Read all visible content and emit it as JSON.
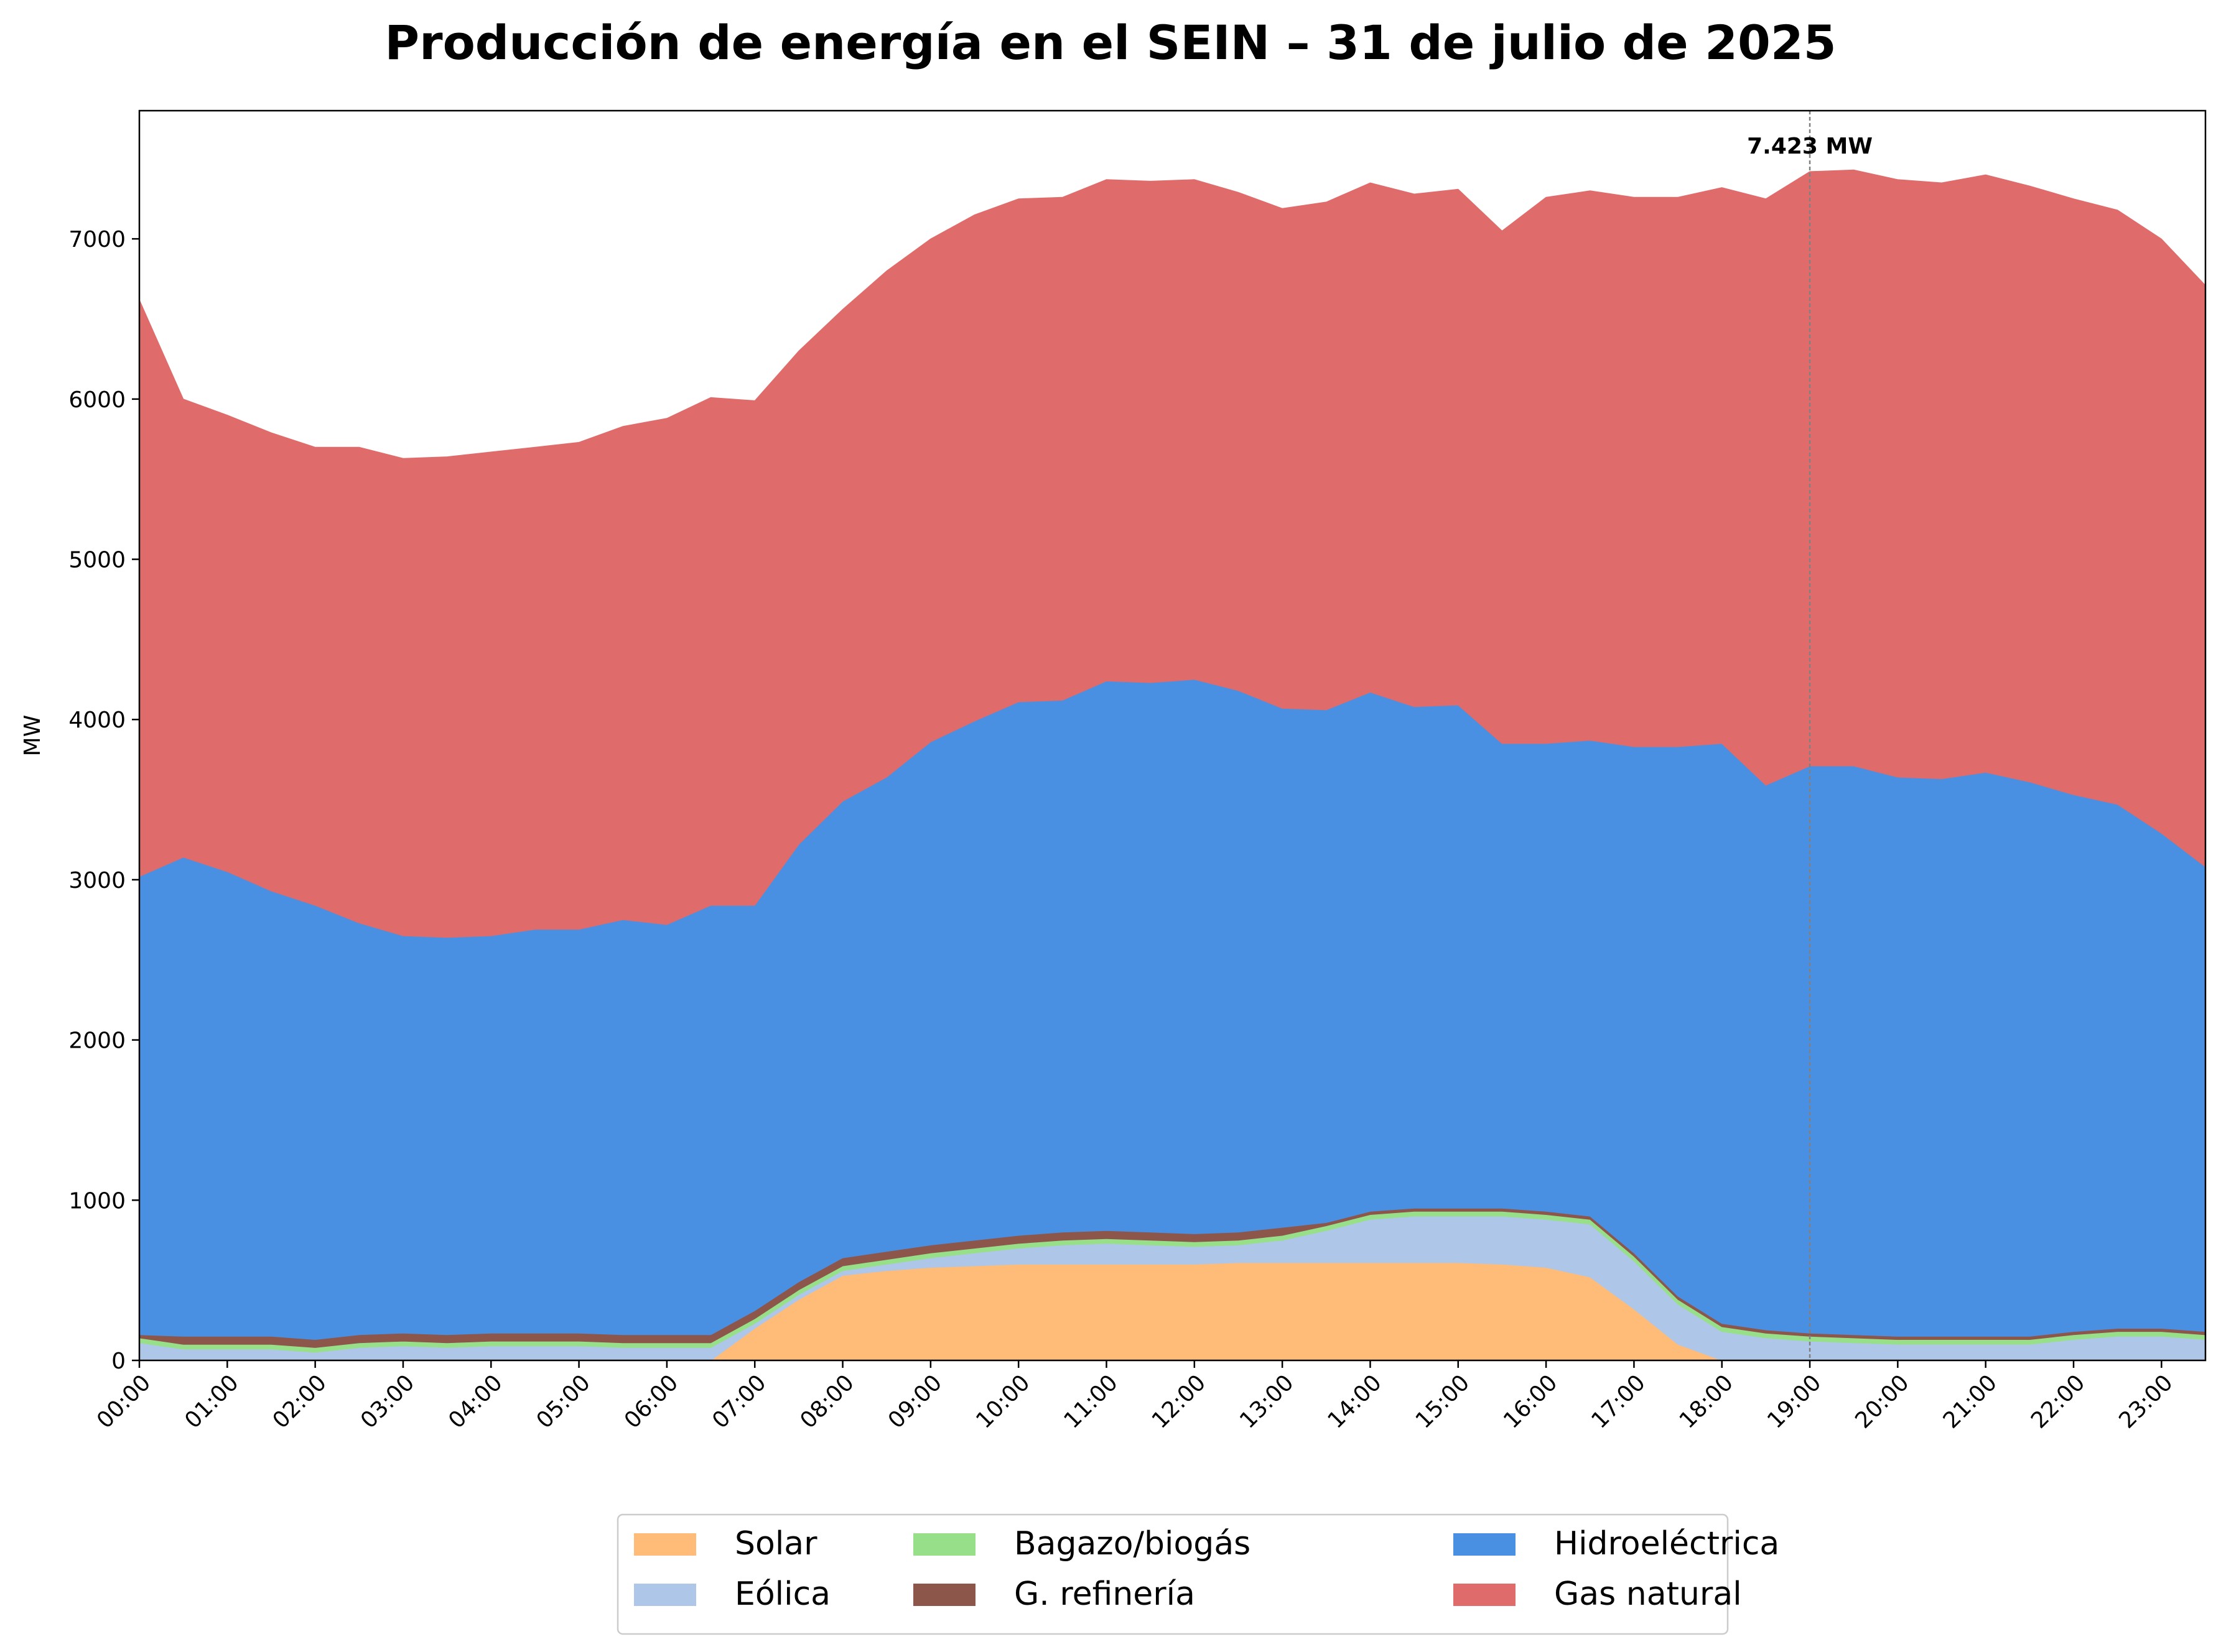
{
  "chart_data": {
    "type": "area",
    "stacked": true,
    "title": "Producción de energía en el SEIN – 31 de julio de 2025",
    "xlabel": "",
    "ylabel": "MW",
    "ylim": [
      0,
      7800
    ],
    "yticks": [
      0,
      1000,
      2000,
      3000,
      4000,
      5000,
      6000,
      7000
    ],
    "x_tick_labels": [
      "00:00",
      "01:00",
      "02:00",
      "03:00",
      "04:00",
      "05:00",
      "06:00",
      "07:00",
      "08:00",
      "09:00",
      "10:00",
      "11:00",
      "12:00",
      "13:00",
      "14:00",
      "15:00",
      "16:00",
      "17:00",
      "18:00",
      "19:00",
      "20:00",
      "21:00",
      "22:00",
      "23:00"
    ],
    "x_step_hours": 0.5,
    "grid": false,
    "legend_position": "bottom-center",
    "legend_columns": 3,
    "series": [
      {
        "name": "Solar",
        "color": "#ffbb78",
        "values": [
          0,
          0,
          0,
          0,
          0,
          0,
          0,
          0,
          0,
          0,
          0,
          0,
          0,
          0,
          200,
          380,
          530,
          560,
          580,
          590,
          600,
          600,
          600,
          600,
          600,
          610,
          610,
          610,
          610,
          610,
          610,
          600,
          580,
          520,
          320,
          100,
          0,
          0,
          0,
          0,
          0,
          0,
          0,
          0,
          0,
          0,
          0,
          0
        ]
      },
      {
        "name": "Eólica",
        "color": "#aec7e8",
        "values": [
          110,
          70,
          70,
          70,
          50,
          80,
          90,
          80,
          90,
          90,
          90,
          80,
          80,
          80,
          30,
          30,
          30,
          40,
          60,
          80,
          100,
          120,
          130,
          120,
          110,
          110,
          140,
          200,
          270,
          290,
          290,
          300,
          300,
          330,
          300,
          250,
          180,
          140,
          120,
          110,
          100,
          100,
          100,
          100,
          130,
          150,
          150,
          130
        ]
      },
      {
        "name": "Bagazo/biogás",
        "color": "#98df8a",
        "values": [
          30,
          30,
          30,
          30,
          30,
          30,
          30,
          30,
          30,
          30,
          30,
          30,
          30,
          30,
          30,
          30,
          30,
          30,
          30,
          30,
          30,
          30,
          30,
          30,
          30,
          30,
          30,
          30,
          30,
          30,
          30,
          30,
          30,
          30,
          30,
          30,
          30,
          30,
          30,
          30,
          30,
          30,
          30,
          30,
          30,
          30,
          30,
          30
        ]
      },
      {
        "name": "G. refinería",
        "color": "#8c564b",
        "values": [
          20,
          50,
          50,
          50,
          50,
          50,
          50,
          50,
          50,
          50,
          50,
          50,
          50,
          50,
          50,
          50,
          50,
          50,
          50,
          50,
          50,
          50,
          50,
          50,
          50,
          50,
          50,
          20,
          20,
          20,
          20,
          20,
          20,
          20,
          20,
          20,
          20,
          20,
          20,
          20,
          20,
          20,
          20,
          20,
          20,
          20,
          20,
          20
        ]
      },
      {
        "name": "Hidroeléctrica",
        "color": "#4a90e2",
        "values": [
          2860,
          2990,
          2900,
          2780,
          2710,
          2570,
          2480,
          2480,
          2480,
          2520,
          2520,
          2590,
          2560,
          2680,
          2530,
          2730,
          2850,
          2960,
          3140,
          3240,
          3330,
          3320,
          3430,
          3430,
          3460,
          3380,
          3240,
          3200,
          3240,
          3130,
          3140,
          2900,
          2920,
          2970,
          3160,
          3430,
          3620,
          3400,
          3540,
          3550,
          3490,
          3480,
          3520,
          3460,
          3350,
          3270,
          3090,
          2900
        ]
      },
      {
        "name": "Gas natural",
        "color": "#e06b6b",
        "values": [
          3600,
          2860,
          2850,
          2860,
          2860,
          2970,
          2980,
          3000,
          3020,
          3010,
          3040,
          3080,
          3160,
          3170,
          3150,
          3080,
          3070,
          3160,
          3140,
          3160,
          3140,
          3140,
          3130,
          3130,
          3120,
          3110,
          3120,
          3170,
          3180,
          3200,
          3220,
          3200,
          3410,
          3430,
          3430,
          3430,
          3470,
          3660,
          3710,
          3720,
          3730,
          3720,
          3730,
          3720,
          3720,
          3710,
          3710,
          3630
        ]
      }
    ],
    "annotations": [
      {
        "label": "7.423 MW",
        "x_time": "19:00",
        "value": 7423
      }
    ]
  }
}
